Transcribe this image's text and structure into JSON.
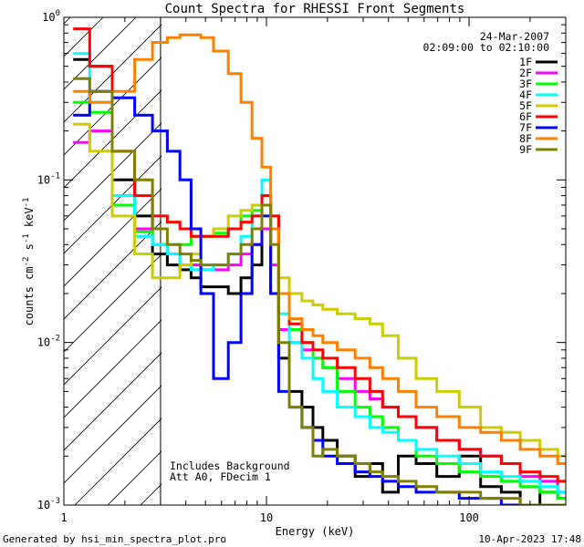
{
  "chart_data": {
    "type": "line",
    "step": true,
    "title": "Count Spectra for RHESSI Front Segments",
    "xlabel": "Energy (keV)",
    "ylabel": "counts cm-2 s-1 keV-1",
    "ylabel_parts": {
      "pre": "counts cm",
      "e1": "-2",
      "mid": " s",
      "e2": "-1",
      "mid2": " keV",
      "e3": "-1"
    },
    "xscale": "log",
    "yscale": "log",
    "xlim": [
      1,
      300
    ],
    "ylim": [
      0.001,
      1
    ],
    "x_ticks": [
      {
        "value": 1,
        "label": "1"
      },
      {
        "value": 10,
        "label": "10"
      },
      {
        "value": 100,
        "label": "100"
      }
    ],
    "y_ticks": [
      {
        "value": 1,
        "base": "10",
        "exp": "0"
      },
      {
        "value": 0.1,
        "base": "10",
        "exp": "-1"
      },
      {
        "value": 0.01,
        "base": "10",
        "exp": "-2"
      },
      {
        "value": 0.001,
        "base": "10",
        "exp": "-3"
      }
    ],
    "date": "24-Mar-2007",
    "time_range": "02:09:00 to 02:10:00",
    "annotation_lines": [
      "Includes Background",
      "Att A0, FDecim 1"
    ],
    "hatched_region": [
      1,
      3
    ],
    "footer_left": "Generated by hsi_min_spectra_plot.pro",
    "footer_right": "10-Apr-2023 17:48",
    "series": [
      {
        "name": "1F",
        "color": "#000000",
        "x": [
          1.2,
          1.5,
          2,
          2.5,
          3,
          3.5,
          4,
          4.5,
          5,
          6,
          7,
          8,
          9,
          10,
          11,
          12,
          14,
          16,
          18,
          20,
          25,
          30,
          35,
          40,
          50,
          60,
          80,
          100,
          130,
          160,
          200,
          250,
          300
        ],
        "y": [
          0.55,
          0.5,
          0.1,
          0.06,
          0.035,
          0.03,
          0.028,
          0.025,
          0.022,
          0.022,
          0.02,
          0.025,
          0.03,
          0.08,
          0.02,
          0.008,
          0.005,
          0.004,
          0.003,
          0.0025,
          0.002,
          0.0015,
          0.0018,
          0.0012,
          0.002,
          0.0018,
          0.0015,
          0.002,
          0.0013,
          0.0012,
          0.001,
          0.0012,
          0.0011
        ]
      },
      {
        "name": "2F",
        "color": "#ff00ff",
        "x": [
          1.2,
          1.5,
          2,
          2.5,
          3,
          3.5,
          4,
          4.5,
          5,
          6,
          7,
          8,
          9,
          10,
          11,
          12,
          14,
          16,
          18,
          20,
          25,
          30,
          35,
          40,
          50,
          60,
          80,
          100,
          130,
          160,
          200,
          250,
          300
        ],
        "y": [
          0.17,
          0.2,
          0.08,
          0.05,
          0.04,
          0.035,
          0.03,
          0.03,
          0.028,
          0.028,
          0.03,
          0.035,
          0.04,
          0.05,
          0.03,
          0.012,
          0.01,
          0.009,
          0.008,
          0.007,
          0.006,
          0.005,
          0.0045,
          0.004,
          0.0035,
          0.003,
          0.0025,
          0.0022,
          0.002,
          0.0018,
          0.0015,
          0.0014,
          0.0012
        ]
      },
      {
        "name": "3F",
        "color": "#00ff00",
        "x": [
          1.2,
          1.5,
          2,
          2.5,
          3,
          3.5,
          4,
          4.5,
          5,
          6,
          7,
          8,
          9,
          10,
          11,
          12,
          14,
          16,
          18,
          20,
          25,
          30,
          35,
          40,
          50,
          60,
          80,
          100,
          130,
          160,
          200,
          250,
          300
        ],
        "y": [
          0.3,
          0.26,
          0.07,
          0.048,
          0.04,
          0.04,
          0.04,
          0.045,
          0.045,
          0.047,
          0.05,
          0.06,
          0.065,
          0.07,
          0.05,
          0.02,
          0.012,
          0.01,
          0.008,
          0.007,
          0.005,
          0.004,
          0.0035,
          0.003,
          0.0025,
          0.002,
          0.0018,
          0.0016,
          0.0015,
          0.0014,
          0.0013,
          0.0012,
          0.0011
        ]
      },
      {
        "name": "4F",
        "color": "#00ffff",
        "x": [
          1.2,
          1.5,
          2,
          2.5,
          3,
          3.5,
          4,
          4.5,
          5,
          6,
          7,
          8,
          9,
          10,
          11,
          12,
          14,
          16,
          18,
          20,
          25,
          30,
          35,
          40,
          50,
          60,
          80,
          100,
          130,
          160,
          200,
          250,
          300
        ],
        "y": [
          0.6,
          0.3,
          0.08,
          0.045,
          0.04,
          0.035,
          0.03,
          0.028,
          0.028,
          0.03,
          0.035,
          0.045,
          0.06,
          0.1,
          0.05,
          0.015,
          0.01,
          0.008,
          0.006,
          0.005,
          0.004,
          0.0035,
          0.003,
          0.0028,
          0.0025,
          0.0022,
          0.002,
          0.0018,
          0.0016,
          0.0015,
          0.0014,
          0.0013,
          0.0012
        ]
      },
      {
        "name": "5F",
        "color": "#cccc00",
        "x": [
          1.2,
          1.5,
          2,
          2.5,
          3,
          3.5,
          4,
          4.5,
          5,
          6,
          7,
          8,
          9,
          10,
          11,
          12,
          14,
          16,
          18,
          20,
          25,
          30,
          35,
          40,
          50,
          60,
          80,
          100,
          130,
          160,
          200,
          250,
          300
        ],
        "y": [
          0.22,
          0.15,
          0.06,
          0.035,
          0.025,
          0.025,
          0.03,
          0.035,
          0.045,
          0.05,
          0.06,
          0.065,
          0.07,
          0.08,
          0.06,
          0.025,
          0.02,
          0.018,
          0.017,
          0.016,
          0.015,
          0.014,
          0.013,
          0.011,
          0.008,
          0.006,
          0.005,
          0.004,
          0.003,
          0.0028,
          0.0025,
          0.0022,
          0.002
        ]
      },
      {
        "name": "6F",
        "color": "#ff0000",
        "x": [
          1.2,
          1.5,
          2,
          2.5,
          3,
          3.5,
          4,
          4.5,
          5,
          6,
          7,
          8,
          9,
          10,
          11,
          12,
          14,
          16,
          18,
          20,
          25,
          30,
          35,
          40,
          50,
          60,
          80,
          100,
          130,
          160,
          200,
          250,
          300
        ],
        "y": [
          0.85,
          0.5,
          0.15,
          0.08,
          0.06,
          0.055,
          0.05,
          0.045,
          0.045,
          0.045,
          0.05,
          0.055,
          0.06,
          0.08,
          0.06,
          0.02,
          0.013,
          0.01,
          0.009,
          0.008,
          0.007,
          0.006,
          0.005,
          0.004,
          0.0035,
          0.003,
          0.0025,
          0.0022,
          0.002,
          0.0018,
          0.0016,
          0.0015,
          0.0014
        ]
      },
      {
        "name": "7F",
        "color": "#0000ff",
        "x": [
          1.2,
          1.5,
          2,
          2.5,
          3,
          3.5,
          4,
          4.5,
          5,
          6,
          7,
          8,
          9,
          10,
          11,
          12,
          14,
          16,
          18,
          20,
          25,
          30,
          35,
          40,
          50,
          60,
          80,
          100,
          130,
          160,
          200,
          250,
          300
        ],
        "y": [
          0.25,
          0.35,
          0.32,
          0.25,
          0.2,
          0.15,
          0.1,
          0.05,
          0.02,
          0.006,
          0.01,
          0.02,
          0.04,
          0.06,
          0.02,
          0.005,
          0.004,
          0.003,
          0.0025,
          0.002,
          0.0018,
          0.0016,
          0.0015,
          0.0014,
          0.0013,
          0.0012,
          0.0012,
          0.0011,
          0.0011,
          0.001,
          0.001,
          0.001,
          0.001
        ]
      },
      {
        "name": "8F",
        "color": "#ff8000",
        "x": [
          1.2,
          1.5,
          2,
          2.5,
          3,
          3.5,
          4,
          4.5,
          5,
          6,
          7,
          8,
          9,
          10,
          11,
          12,
          14,
          16,
          18,
          20,
          25,
          30,
          35,
          40,
          50,
          60,
          80,
          100,
          130,
          160,
          200,
          250,
          300
        ],
        "y": [
          0.35,
          0.3,
          0.35,
          0.55,
          0.7,
          0.75,
          0.78,
          0.78,
          0.75,
          0.62,
          0.45,
          0.3,
          0.18,
          0.12,
          0.05,
          0.02,
          0.014,
          0.012,
          0.011,
          0.01,
          0.009,
          0.008,
          0.007,
          0.006,
          0.005,
          0.004,
          0.0035,
          0.003,
          0.0028,
          0.0025,
          0.0022,
          0.002,
          0.0018
        ]
      },
      {
        "name": "9F",
        "color": "#808000",
        "x": [
          1.2,
          1.5,
          2,
          2.5,
          3,
          3.5,
          4,
          4.5,
          5,
          6,
          7,
          8,
          9,
          10,
          11,
          12,
          14,
          16,
          18,
          20,
          25,
          30,
          35,
          40,
          50,
          60,
          80,
          100,
          130,
          160,
          200,
          250,
          300
        ],
        "y": [
          0.42,
          0.35,
          0.15,
          0.1,
          0.05,
          0.04,
          0.035,
          0.032,
          0.03,
          0.03,
          0.035,
          0.04,
          0.05,
          0.07,
          0.04,
          0.01,
          0.004,
          0.003,
          0.002,
          0.0022,
          0.002,
          0.0018,
          0.0016,
          0.0015,
          0.0014,
          0.0013,
          0.0012,
          0.0012,
          0.0011,
          0.0011,
          0.001,
          0.001,
          0.001
        ]
      }
    ]
  }
}
